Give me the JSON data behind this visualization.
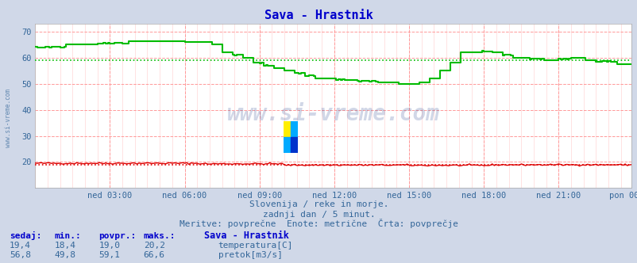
{
  "title": "Sava - Hrastnik",
  "bg_color": "#d0d8e8",
  "plot_bg_color": "#ffffff",
  "grid_color_major": "#ff9999",
  "grid_color_minor": "#ffdddd",
  "xlabel_ticks": [
    "ned 03:00",
    "ned 06:00",
    "ned 09:00",
    "ned 12:00",
    "ned 15:00",
    "ned 18:00",
    "ned 21:00",
    "pon 00:00"
  ],
  "y_ticks": [
    20,
    30,
    40,
    50,
    60,
    70
  ],
  "ylim": [
    10,
    73
  ],
  "temp_color": "#dd0000",
  "flow_color": "#00bb00",
  "temp_avg": 19.0,
  "flow_avg": 59.1,
  "subtitle1": "Slovenija / reke in morje.",
  "subtitle2": "zadnji dan / 5 minut.",
  "subtitle3": "Meritve: povprečne  Enote: metrične  Črta: povprečje",
  "watermark": "www.si-vreme.com",
  "caption_header": [
    "sedaj:",
    "min.:",
    "povpr.:",
    "maks.:",
    "Sava - Hrastnik"
  ],
  "caption_temp": [
    "19,4",
    "18,4",
    "19,0",
    "20,2",
    "temperatura[C]"
  ],
  "caption_flow": [
    "56,8",
    "49,8",
    "59,1",
    "66,6",
    "pretok[m3/s]"
  ],
  "title_color": "#0000cc",
  "label_color": "#336699",
  "text_color": "#336699",
  "side_watermark": "www.si-vreme.com"
}
